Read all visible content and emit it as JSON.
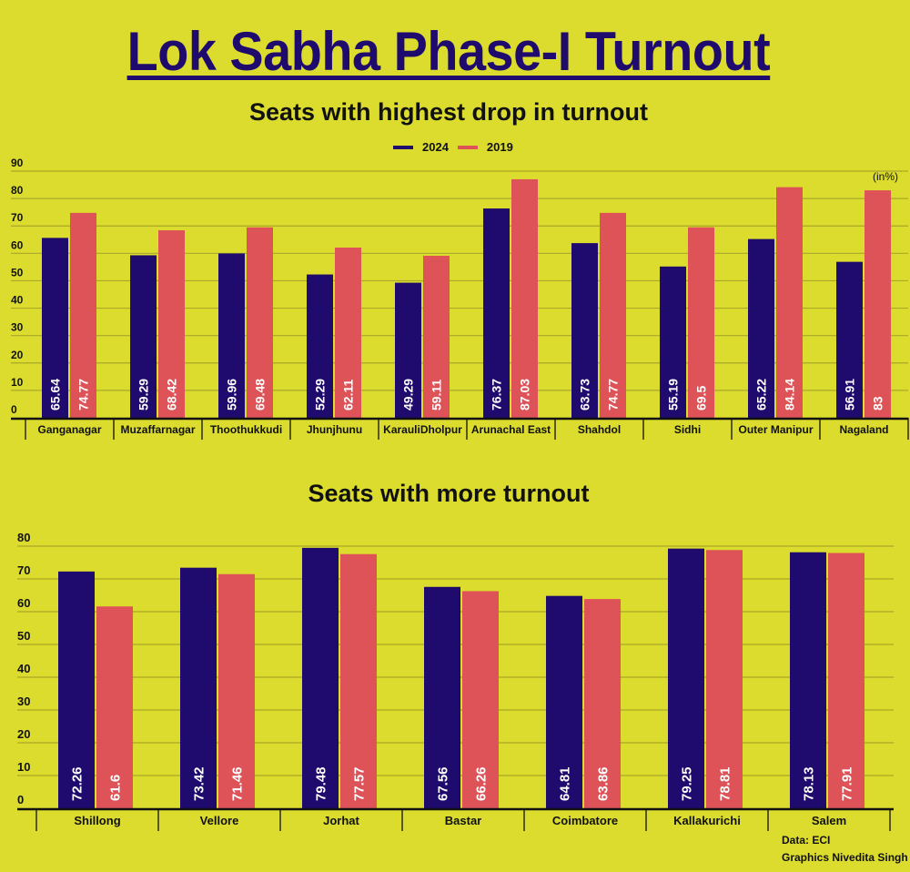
{
  "title": "Lok Sabha Phase-I Turnout",
  "legend": [
    {
      "label": "2024",
      "color": "#1f0a6e"
    },
    {
      "label": "2019",
      "color": "#de5358"
    }
  ],
  "unit_note": "(in%)",
  "source": "Data: ECI",
  "credit": "Graphics Nivedita Singh",
  "colors": {
    "background": "#dcdc2e",
    "grid": "#a8a82a",
    "axis": "#111111"
  },
  "chart_data": [
    {
      "type": "bar",
      "title": "Seats with highest drop in turnout",
      "xlabel": "",
      "ylabel": "",
      "ylim": [
        0,
        90
      ],
      "yticks": [
        0,
        10,
        20,
        30,
        40,
        50,
        60,
        70,
        80,
        90
      ],
      "grid": true,
      "legend_position": "top-center",
      "categories": [
        "Ganganagar",
        "Muzaffarnagar",
        "Thoothukkudi",
        "Jhunjhunu",
        "KarauliDholpur",
        "Arunachal East",
        "Shahdol",
        "Sidhi",
        "Outer Manipur",
        "Nagaland"
      ],
      "series": [
        {
          "name": "2024",
          "values": [
            65.64,
            59.29,
            59.96,
            52.29,
            49.29,
            76.37,
            63.73,
            55.19,
            65.22,
            56.91
          ],
          "labels": [
            "65.64",
            "59.29",
            "59.96",
            "52.29",
            "49.29",
            "76.37",
            "63.73",
            "55.19",
            "65.22",
            "56.91"
          ]
        },
        {
          "name": "2019",
          "values": [
            74.77,
            68.42,
            69.48,
            62.11,
            59.11,
            87.03,
            74.77,
            69.5,
            84.14,
            83
          ],
          "labels": [
            "74.77",
            "68.42",
            "69.48",
            "62.11",
            "59.11",
            "87.03",
            "74.77",
            "69.5",
            "84.14",
            "83"
          ]
        }
      ]
    },
    {
      "type": "bar",
      "title": "Seats with more turnout",
      "xlabel": "",
      "ylabel": "",
      "ylim": [
        0,
        80
      ],
      "yticks": [
        0,
        10,
        20,
        30,
        40,
        50,
        60,
        70,
        80
      ],
      "grid": true,
      "categories": [
        "Shillong",
        "Vellore",
        "Jorhat",
        "Bastar",
        "Coimbatore",
        "Kallakurichi",
        "Salem"
      ],
      "series": [
        {
          "name": "2024",
          "values": [
            72.26,
            73.42,
            79.48,
            67.56,
            64.81,
            79.25,
            78.13
          ],
          "labels": [
            "72.26",
            "73.42",
            "79.48",
            "67.56",
            "64.81",
            "79.25",
            "78.13"
          ]
        },
        {
          "name": "2019",
          "values": [
            61.6,
            71.46,
            77.57,
            66.26,
            63.86,
            78.81,
            77.91
          ],
          "labels": [
            "61.6",
            "71.46",
            "77.57",
            "66.26",
            "63.86",
            "78.81",
            "77.91"
          ]
        }
      ]
    }
  ]
}
